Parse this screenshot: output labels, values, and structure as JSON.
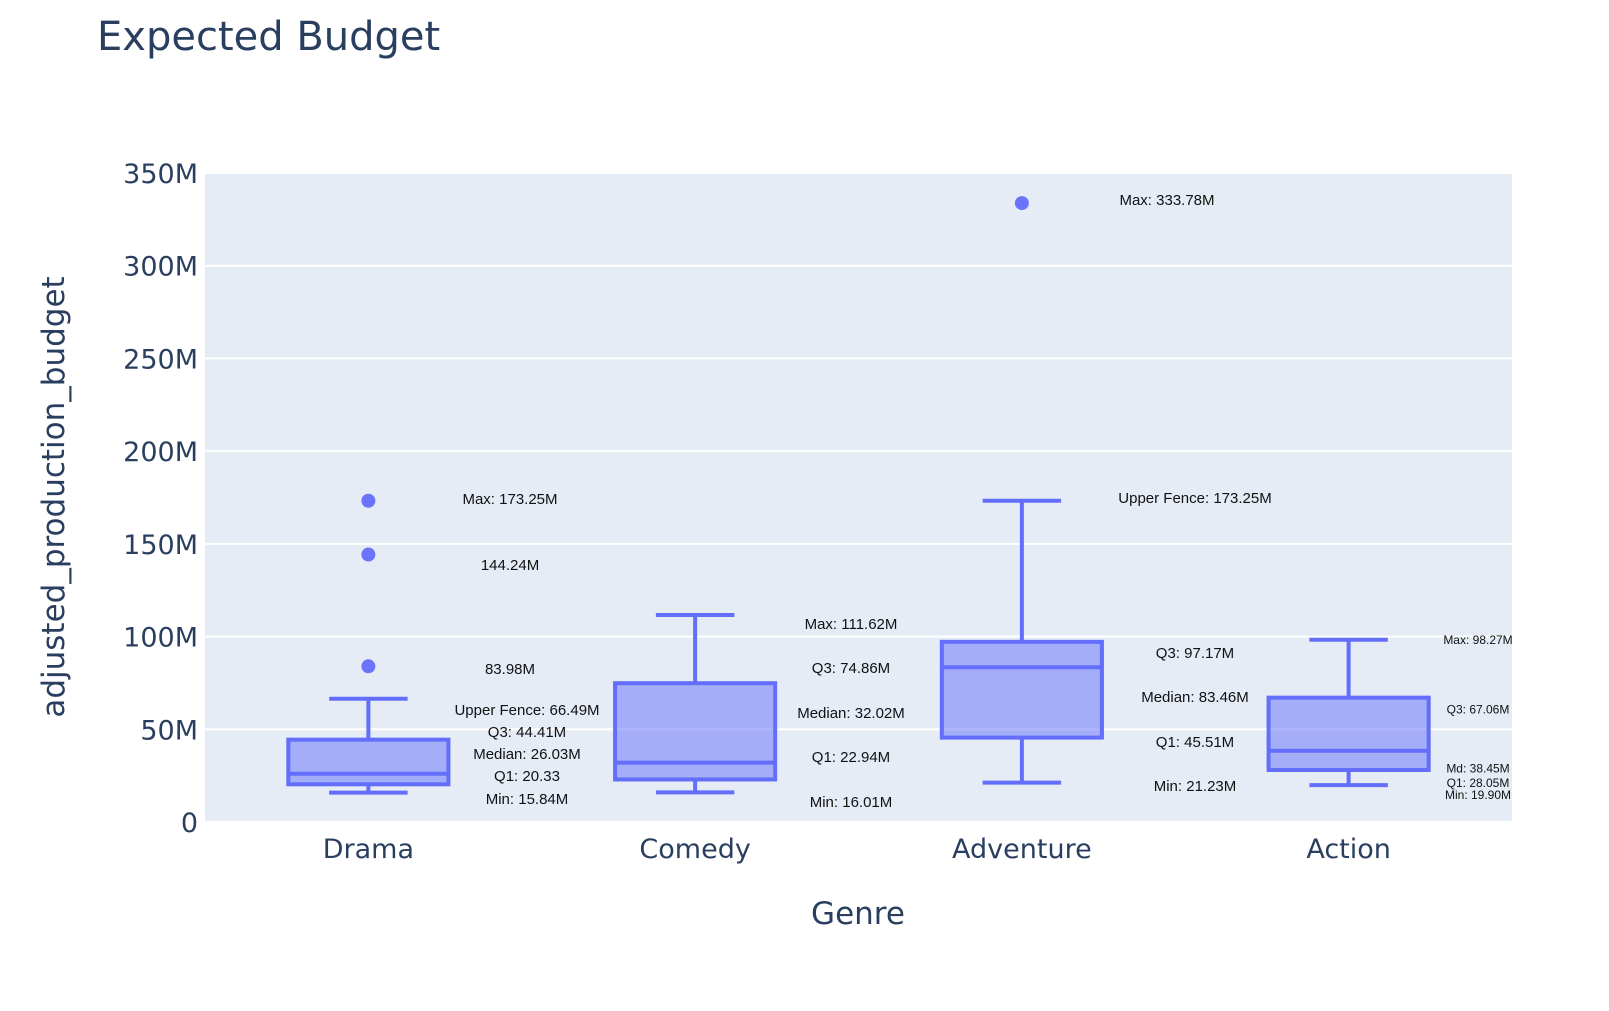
{
  "chart_data": {
    "type": "box",
    "title": "Expected Budget",
    "xlabel": "Genre",
    "ylabel": "adjusted_production_budget",
    "ylim": [
      0,
      350000000
    ],
    "y_ticks": [
      0,
      50000000,
      100000000,
      150000000,
      200000000,
      250000000,
      300000000,
      350000000
    ],
    "y_tick_labels": [
      "0",
      "50M",
      "100M",
      "150M",
      "200M",
      "250M",
      "300M",
      "350M"
    ],
    "categories": [
      "Drama",
      "Comedy",
      "Adventure",
      "Action"
    ],
    "grid": true,
    "colors": {
      "box": "#636efa",
      "plot_bg": "#e5ecf6",
      "text": "#2a3f5f"
    },
    "boxes": [
      {
        "category": "Drama",
        "lower_whisker": 15840000,
        "q1": 20330000,
        "median": 26030000,
        "q3": 44410000,
        "upper_whisker": 66490000,
        "outliers": [
          83980000,
          144240000,
          173250000
        ],
        "annotations": [
          {
            "text": "Max: 173.25M",
            "y": 173250000
          },
          {
            "text": "144.24M",
            "y": 144240000
          },
          {
            "text": "83.98M",
            "y": 83980000
          },
          {
            "text": "Upper Fence: 66.49M",
            "y": 66490000
          },
          {
            "text": "Q3: 44.41M",
            "y": 44410000
          },
          {
            "text": "Median: 26.03M",
            "y": 26030000
          },
          {
            "text": "Q1: 20.33",
            "y": 20330000
          },
          {
            "text": "Min: 15.84M",
            "y": 15840000
          }
        ]
      },
      {
        "category": "Comedy",
        "lower_whisker": 16010000,
        "q1": 22940000,
        "median": 32020000,
        "q3": 74860000,
        "upper_whisker": 111620000,
        "outliers": [],
        "annotations": [
          {
            "text": "Max: 111.62M",
            "y": 111620000
          },
          {
            "text": "Q3: 74.86M",
            "y": 74860000
          },
          {
            "text": "Median: 32.02M",
            "y": 32020000
          },
          {
            "text": "Q1: 22.94M",
            "y": 22940000
          },
          {
            "text": "Min: 16.01M",
            "y": 16010000
          }
        ]
      },
      {
        "category": "Adventure",
        "lower_whisker": 21230000,
        "q1": 45510000,
        "median": 83460000,
        "q3": 97170000,
        "upper_whisker": 173250000,
        "outliers": [
          333780000
        ],
        "annotations": [
          {
            "text": "Max: 333.78M",
            "y": 333780000
          },
          {
            "text": "Upper Fence: 173.25M",
            "y": 173250000
          },
          {
            "text": "Q3: 97.17M",
            "y": 97170000
          },
          {
            "text": "Median: 83.46M",
            "y": 83460000
          },
          {
            "text": "Q1: 45.51M",
            "y": 45510000
          },
          {
            "text": "Min: 21.23M",
            "y": 21230000
          }
        ]
      },
      {
        "category": "Action",
        "lower_whisker": 19900000,
        "q1": 28050000,
        "median": 38450000,
        "q3": 67060000,
        "upper_whisker": 98270000,
        "outliers": [],
        "annotations": [
          {
            "text": "Max: 98.27M",
            "y": 98270000
          },
          {
            "text": "Q3: 67.06M",
            "y": 67060000
          },
          {
            "text": "Md: 38.45M",
            "y": 38450000
          },
          {
            "text": "Q1: 28.05M",
            "y": 28050000
          },
          {
            "text": "Min: 19.90M",
            "y": 19900000
          }
        ]
      }
    ]
  }
}
